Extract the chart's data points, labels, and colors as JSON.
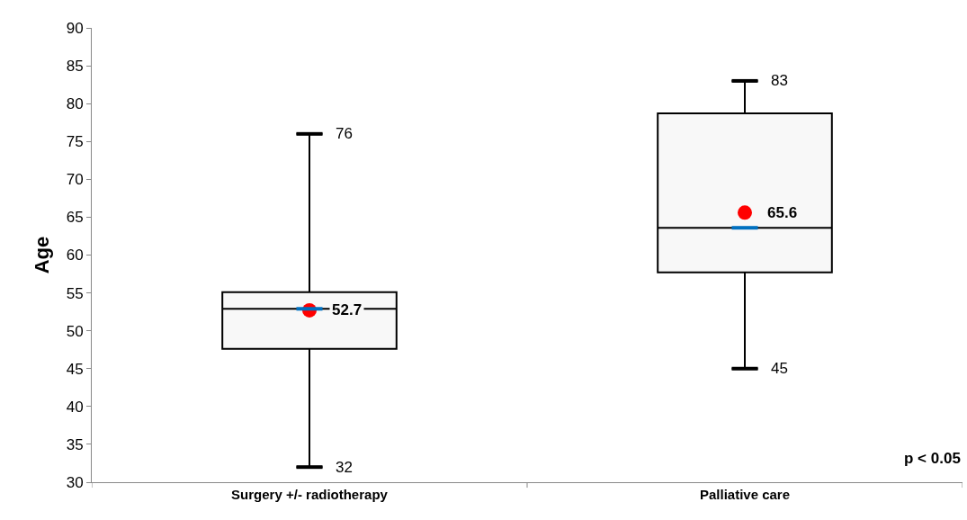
{
  "chart_data": {
    "type": "box",
    "ylabel": "Age",
    "categories": [
      "Surgery +/- radiotherapy",
      "Palliative care"
    ],
    "boxes": [
      {
        "low": 32,
        "q1": 47.6,
        "median": 52.9,
        "q3": 55.1,
        "high": 76
      },
      {
        "low": 45,
        "q1": 57.7,
        "median": 63.6,
        "q3": 78.7,
        "high": 83
      }
    ],
    "color": "#000000",
    "series": [
      {
        "type": "scatter",
        "x": [
          "Surgery +/- radiotherapy",
          "Palliative care"
        ],
        "values": [
          52.7,
          65.6
        ],
        "value_labels": [
          "52.7",
          "65.6"
        ],
        "color": "#ff0000"
      }
    ],
    "ylim": [
      30,
      90
    ],
    "yticks": [
      30,
      35,
      40,
      45,
      50,
      55,
      60,
      65,
      70,
      75,
      80,
      85,
      90
    ],
    "grid": false,
    "annotations": [
      {
        "text": "76",
        "x": "Surgery +/- radiotherapy",
        "y": 76
      },
      {
        "text": "32",
        "x": "Surgery +/- radiotherapy",
        "y": 32
      },
      {
        "text": "83",
        "x": "Palliative care",
        "y": 83
      },
      {
        "text": "45",
        "x": "Palliative care",
        "y": 45
      },
      "p < 0.05"
    ]
  }
}
